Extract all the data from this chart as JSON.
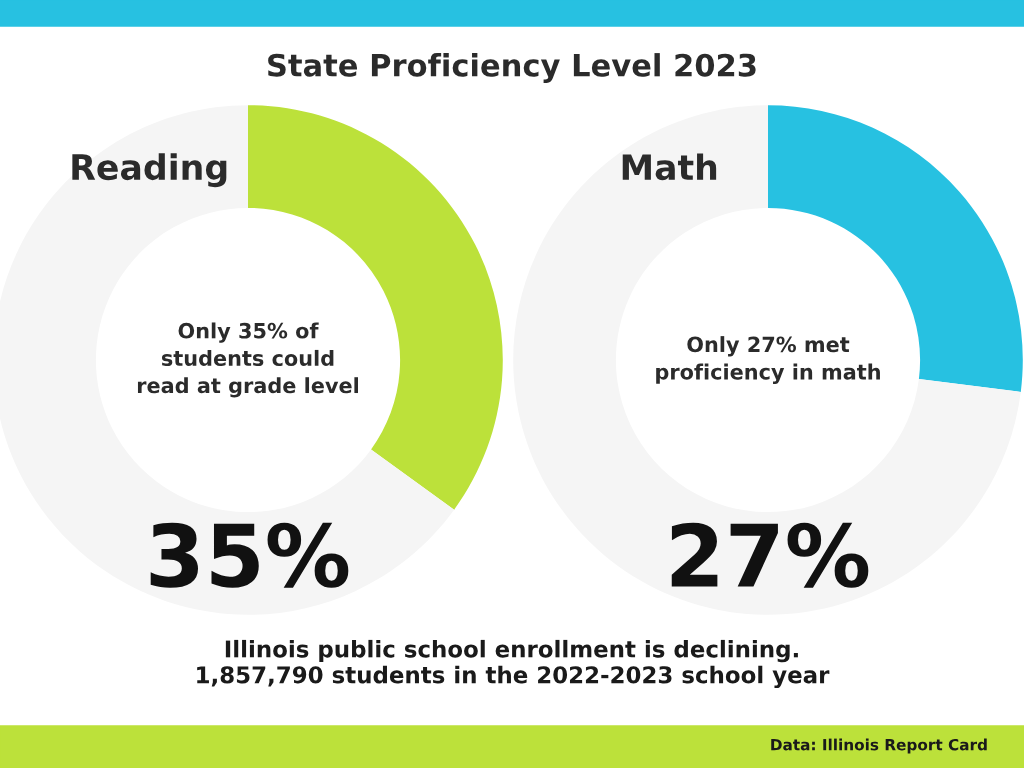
{
  "chart_data": [
    {
      "type": "donut",
      "title": "Reading",
      "categories": [
        null,
        null
      ],
      "values": [
        35,
        65
      ],
      "colors": [
        "#bce13a",
        "#f5f5f5"
      ],
      "annotations": [
        "Only 35% of\nstudents could\nread at grade level",
        "35%"
      ]
    },
    {
      "type": "donut",
      "title": "Math",
      "categories": [
        null,
        null
      ],
      "values": [
        27,
        73
      ],
      "colors": [
        "#27c1e1",
        "#f5f5f5"
      ],
      "annotations": [
        "Only 27% met\nproficiency in math",
        "27%"
      ]
    },
    {
      "type": "other",
      "title": "State Proficiency Level 2023",
      "annotations": [
        "Illinois public school enrollment is declining.\n1,857,790 students in the 2022-2023 school year",
        "Data: Illinois Report Card"
      ]
    }
  ]
}
